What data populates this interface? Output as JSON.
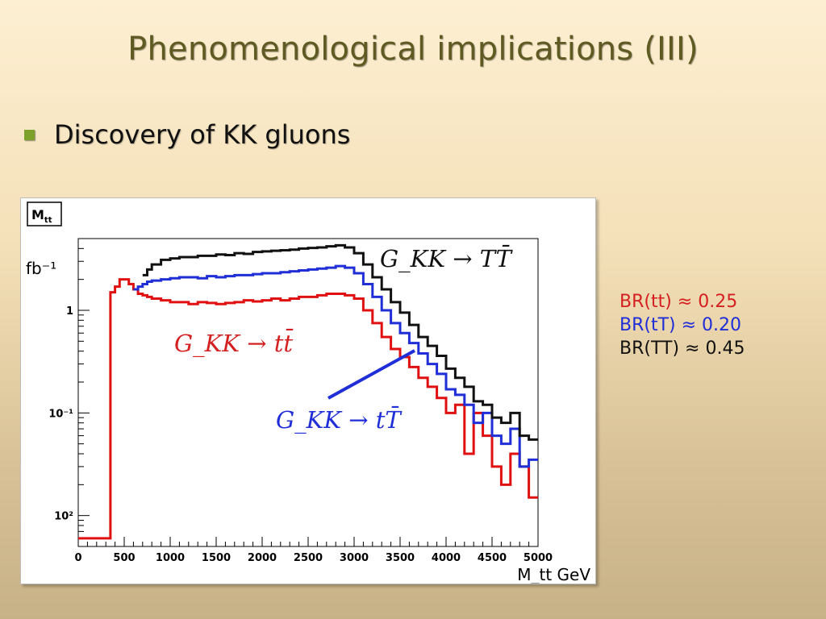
{
  "slide": {
    "title": "Phenomenological implications (III)",
    "bullet": "Discovery of KK gluons"
  },
  "branching_ratios": [
    {
      "label": "BR(tt) ≈ 0.25",
      "color": "#d42020"
    },
    {
      "label": "BR(tT) ≈ 0.20",
      "color": "#1f2ed6"
    },
    {
      "label": "BR(TT) ≈ 0.45",
      "color": "#111111"
    }
  ],
  "chart_data": {
    "type": "line",
    "histogram_name": "Mtt",
    "xlabel": "M_tt GeV",
    "ylabel": "fb⁻¹",
    "xlim": [
      0,
      5000
    ],
    "ylim": [
      0.005,
      5
    ],
    "log_y": true,
    "grid": false,
    "x_ticks": [
      "0",
      "500",
      "1000",
      "1500",
      "2000",
      "2500",
      "3000",
      "3500",
      "4000",
      "4500",
      "5000"
    ],
    "y_ticks": [
      "10²",
      "10⁻¹",
      "1"
    ],
    "annotations": [
      "G_KK → TT̄",
      "G_KK → tt̄",
      "G_KK → tT̄"
    ],
    "x": [
      0,
      300,
      350,
      400,
      450,
      500,
      550,
      600,
      650,
      700,
      750,
      800,
      900,
      1000,
      1100,
      1200,
      1300,
      1400,
      1500,
      1600,
      1700,
      1800,
      1900,
      2000,
      2100,
      2200,
      2300,
      2400,
      2500,
      2600,
      2700,
      2800,
      2900,
      3000,
      3100,
      3200,
      3300,
      3400,
      3500,
      3600,
      3700,
      3800,
      3900,
      4000,
      4100,
      4200,
      4300,
      4400,
      4500,
      4600,
      4700,
      4800,
      4900
    ],
    "series": [
      {
        "name": "G_KK → tt̄",
        "color": "#e01010",
        "values": [
          0.006,
          0.006,
          1.5,
          1.7,
          2.0,
          2.0,
          1.8,
          1.6,
          1.45,
          1.4,
          1.35,
          1.3,
          1.25,
          1.2,
          1.2,
          1.15,
          1.2,
          1.18,
          1.15,
          1.18,
          1.2,
          1.25,
          1.22,
          1.25,
          1.3,
          1.25,
          1.3,
          1.35,
          1.35,
          1.4,
          1.45,
          1.45,
          1.4,
          1.3,
          1.0,
          0.75,
          0.55,
          0.42,
          0.35,
          0.28,
          0.22,
          0.18,
          0.14,
          0.1,
          0.12,
          0.04,
          0.1,
          0.06,
          0.03,
          0.02,
          0.04,
          0.03,
          0.015
        ]
      },
      {
        "name": "G_KK → tT̄",
        "color": "#1f2ed6",
        "values": [
          null,
          null,
          null,
          null,
          null,
          null,
          null,
          1.6,
          1.7,
          1.8,
          1.9,
          1.95,
          2.0,
          2.05,
          2.1,
          2.1,
          2.05,
          2.15,
          2.1,
          2.15,
          2.2,
          2.2,
          2.25,
          2.3,
          2.3,
          2.35,
          2.4,
          2.45,
          2.5,
          2.55,
          2.6,
          2.7,
          2.6,
          2.3,
          1.8,
          1.35,
          1.0,
          0.75,
          0.6,
          0.48,
          0.38,
          0.3,
          0.24,
          0.17,
          0.15,
          0.12,
          0.08,
          0.1,
          0.06,
          0.05,
          0.07,
          0.03,
          0.035
        ]
      },
      {
        "name": "G_KK → TT̄",
        "color": "#111111",
        "values": [
          null,
          null,
          null,
          null,
          null,
          null,
          null,
          null,
          null,
          2.2,
          2.5,
          2.8,
          3.1,
          3.2,
          3.3,
          3.3,
          3.4,
          3.4,
          3.5,
          3.45,
          3.6,
          3.55,
          3.7,
          3.75,
          3.8,
          3.85,
          3.9,
          4.0,
          4.05,
          4.1,
          4.2,
          4.3,
          4.1,
          3.6,
          2.8,
          2.1,
          1.6,
          1.2,
          0.95,
          0.72,
          0.55,
          0.45,
          0.36,
          0.27,
          0.22,
          0.18,
          0.13,
          0.12,
          0.09,
          0.08,
          0.1,
          0.06,
          0.055
        ]
      }
    ]
  }
}
